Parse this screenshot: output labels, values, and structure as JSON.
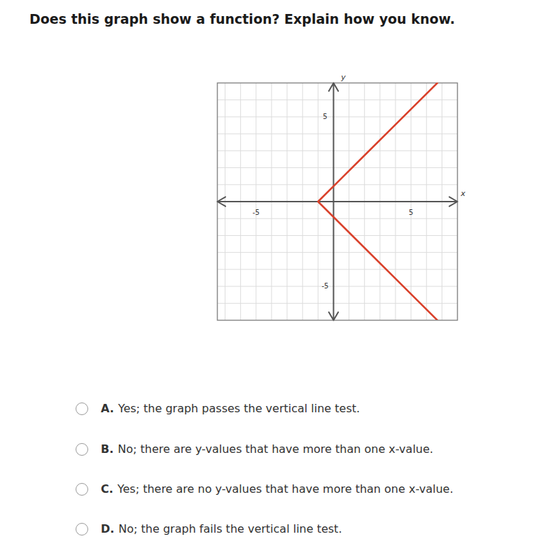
{
  "question": "Does this graph show a function? Explain how you know.",
  "chart_data": {
    "type": "line",
    "x_label": "x",
    "y_label": "y",
    "xlim": [
      -7.5,
      8
    ],
    "ylim": [
      -7,
      7
    ],
    "xticks": [
      -5,
      5
    ],
    "yticks": [
      -5,
      5
    ],
    "grid": true,
    "color": "#d9412b",
    "x": [
      6.7,
      -1,
      6.7
    ],
    "values": [
      7,
      0,
      -7
    ]
  },
  "options": [
    {
      "letter": "A.",
      "text": "Yes; the graph passes the vertical line test."
    },
    {
      "letter": "B.",
      "text": "No; there are y-values that have more than one x-value."
    },
    {
      "letter": "C.",
      "text": "Yes; there are no y-values that have more than one x-value."
    },
    {
      "letter": "D.",
      "text": "No; the graph fails the vertical line test."
    }
  ]
}
